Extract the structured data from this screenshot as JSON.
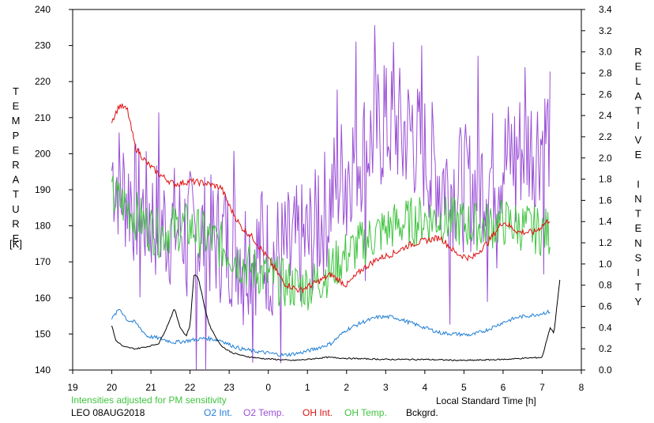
{
  "chart_data": {
    "type": "line",
    "left_axis": {
      "label": "TEMPERATURE",
      "unit": "[K]",
      "ylim": [
        140,
        240
      ],
      "ticks": [
        140,
        150,
        160,
        170,
        180,
        190,
        200,
        210,
        220,
        230,
        240
      ]
    },
    "right_axis": {
      "label": "RELATIVE INTENSITY",
      "ylim": [
        0.0,
        3.4
      ],
      "ticks": [
        "0.0",
        "0.2",
        "0.4",
        "0.6",
        "0.8",
        "1.0",
        "1.2",
        "1.4",
        "1.6",
        "1.8",
        "2.0",
        "2.2",
        "2.4",
        "2.6",
        "2.8",
        "3.0",
        "3.2",
        "3.4"
      ]
    },
    "x_axis": {
      "label": "Local Standard Time [h]",
      "xlim": [
        19,
        32
      ],
      "ticks": [
        "19",
        "20",
        "21",
        "22",
        "23",
        "0",
        "1",
        "2",
        "3",
        "4",
        "5",
        "6",
        "7",
        "8"
      ]
    },
    "note": "Intensities adjusted for PM sensitivity",
    "station": "LEO 08AUG2018",
    "legend": [
      {
        "name": "O2 Int.",
        "color": "#1f7fd6"
      },
      {
        "name": "O2 Temp.",
        "color": "#9a4fd6"
      },
      {
        "name": "OH Int.",
        "color": "#e01010"
      },
      {
        "name": "OH Temp.",
        "color": "#3fc43f"
      },
      {
        "name": "Bckgrd.",
        "color": "#000000"
      }
    ],
    "series": [
      {
        "name": "O2 Temp.",
        "axis": "left",
        "color": "#9a4fd6",
        "noise": 18,
        "x": [
          20.0,
          20.3,
          20.6,
          20.9,
          21.2,
          21.5,
          21.8,
          22.1,
          22.4,
          22.7,
          23.0,
          23.3,
          23.6,
          24.0,
          24.4,
          24.8,
          25.2,
          25.6,
          26.0,
          26.4,
          26.8,
          27.2,
          27.6,
          28.0,
          28.4,
          28.8,
          29.2,
          29.6,
          30.0,
          30.4,
          30.8,
          31.2
        ],
        "y": [
          196,
          190,
          186,
          183,
          181,
          180,
          179,
          178,
          177,
          176,
          175,
          174,
          173,
          172,
          172,
          174,
          178,
          188,
          197,
          201,
          206,
          208,
          206,
          200,
          194,
          191,
          190,
          194,
          198,
          201,
          203,
          206
        ]
      },
      {
        "name": "OH Temp.",
        "axis": "left",
        "color": "#3fc43f",
        "noise": 7,
        "x": [
          20.0,
          20.3,
          20.6,
          20.9,
          21.2,
          21.5,
          21.8,
          22.1,
          22.4,
          22.7,
          23.0,
          23.3,
          23.6,
          24.0,
          24.4,
          24.8,
          25.2,
          25.6,
          26.0,
          26.4,
          26.8,
          27.2,
          27.6,
          28.0,
          28.4,
          28.8,
          29.2,
          29.6,
          30.0,
          30.4,
          30.8,
          31.2
        ],
        "y": [
          188,
          186,
          183,
          180,
          178,
          179,
          180,
          179,
          177,
          175,
          173,
          170,
          168,
          166,
          164,
          163,
          164,
          168,
          172,
          175,
          178,
          180,
          181,
          182,
          182,
          181,
          180,
          180,
          181,
          180,
          179,
          178
        ]
      },
      {
        "name": "OH Int.",
        "axis": "right",
        "color": "#e01010",
        "noise": 0.03,
        "x": [
          20.0,
          20.2,
          20.4,
          20.6,
          20.9,
          21.2,
          21.6,
          22.0,
          22.4,
          22.8,
          23.0,
          23.3,
          23.6,
          24.0,
          24.4,
          24.8,
          25.2,
          25.6,
          26.0,
          26.4,
          26.8,
          27.2,
          27.6,
          28.0,
          28.4,
          28.8,
          29.2,
          29.6,
          30.0,
          30.4,
          30.8,
          31.2
        ],
        "y": [
          2.35,
          2.5,
          2.45,
          2.1,
          1.95,
          1.85,
          1.75,
          1.78,
          1.76,
          1.72,
          1.55,
          1.35,
          1.25,
          1.05,
          0.82,
          0.75,
          0.82,
          0.9,
          0.8,
          0.95,
          1.05,
          1.1,
          1.18,
          1.22,
          1.25,
          1.1,
          1.05,
          1.2,
          1.4,
          1.3,
          1.3,
          1.42
        ]
      },
      {
        "name": "O2 Int.",
        "axis": "right",
        "color": "#1f7fd6",
        "noise": 0.018,
        "x": [
          20.0,
          20.2,
          20.4,
          20.6,
          20.9,
          21.2,
          21.6,
          22.0,
          22.4,
          22.8,
          23.0,
          23.3,
          23.6,
          24.0,
          24.4,
          24.8,
          25.2,
          25.6,
          26.0,
          26.4,
          26.8,
          27.2,
          27.6,
          28.0,
          28.4,
          28.8,
          29.2,
          29.6,
          30.0,
          30.4,
          30.8,
          31.2
        ],
        "y": [
          0.48,
          0.58,
          0.47,
          0.45,
          0.32,
          0.3,
          0.26,
          0.28,
          0.3,
          0.28,
          0.24,
          0.2,
          0.18,
          0.16,
          0.14,
          0.16,
          0.2,
          0.25,
          0.38,
          0.45,
          0.5,
          0.5,
          0.45,
          0.4,
          0.35,
          0.34,
          0.33,
          0.38,
          0.45,
          0.5,
          0.52,
          0.55
        ]
      },
      {
        "name": "Bckgrd.",
        "axis": "right",
        "color": "#000000",
        "noise": 0.006,
        "x": [
          20.0,
          20.1,
          20.3,
          20.6,
          20.9,
          21.2,
          21.4,
          21.6,
          21.75,
          21.9,
          22.0,
          22.1,
          22.2,
          22.3,
          22.4,
          22.5,
          22.6,
          22.75,
          22.9,
          23.1,
          23.4,
          23.8,
          24.2,
          24.6,
          25.0,
          25.5,
          26.0,
          27.0,
          28.0,
          29.0,
          30.0,
          31.0,
          31.2,
          31.3,
          31.45
        ],
        "y": [
          0.42,
          0.28,
          0.22,
          0.2,
          0.22,
          0.25,
          0.4,
          0.58,
          0.4,
          0.32,
          0.42,
          0.9,
          0.88,
          0.72,
          0.55,
          0.42,
          0.35,
          0.25,
          0.2,
          0.16,
          0.13,
          0.11,
          0.1,
          0.09,
          0.1,
          0.12,
          0.11,
          0.1,
          0.1,
          0.09,
          0.1,
          0.12,
          0.4,
          0.35,
          0.85
        ]
      }
    ]
  }
}
